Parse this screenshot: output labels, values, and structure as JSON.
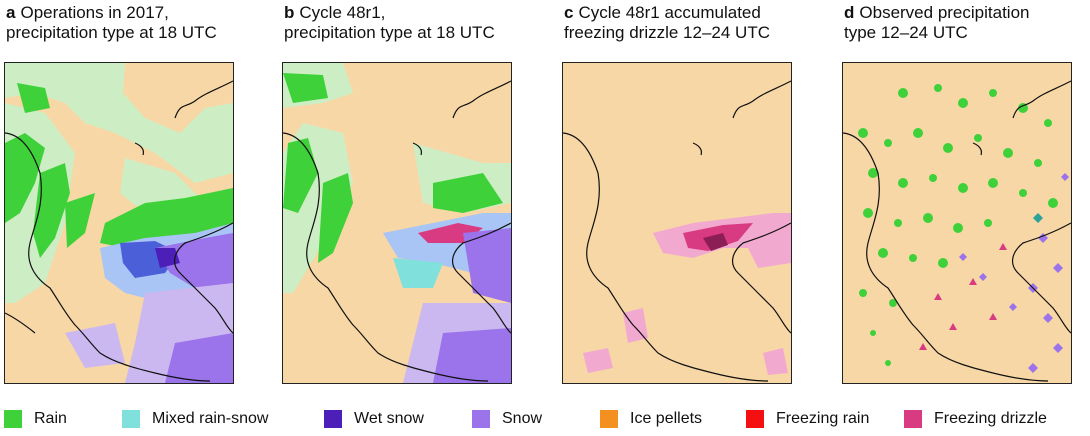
{
  "panels": [
    {
      "letter": "a",
      "line1": "Operations in 2017,",
      "line2": "precipitation type at 18 UTC"
    },
    {
      "letter": "b",
      "line1": "Cycle 48r1,",
      "line2": "precipitation type at 18 UTC"
    },
    {
      "letter": "c",
      "line1": "Cycle 48r1 accumulated",
      "line2": "freezing drizzle 12–24 UTC"
    },
    {
      "letter": "d",
      "line1": "Observed precipitation",
      "line2": "type 12–24 UTC"
    }
  ],
  "legend": [
    {
      "label": "Rain",
      "color": "#3fd13a"
    },
    {
      "label": "Mixed rain-snow",
      "color": "#7fe0dc"
    },
    {
      "label": "Wet snow",
      "color": "#4b1fb8"
    },
    {
      "label": "Snow",
      "color": "#9b73ea"
    },
    {
      "label": "Ice pellets",
      "color": "#f39020"
    },
    {
      "label": "Freezing rain",
      "color": "#f41010"
    },
    {
      "label": "Freezing drizzle",
      "color": "#d93b82"
    }
  ],
  "colors": {
    "land": "#f7d7a6",
    "light_rain": "#cdeec4",
    "light_snow": "#cbb8f0",
    "light_mix": "#a9c5f5",
    "light_fzdz": "#f2a9cf",
    "border": "#111111"
  }
}
